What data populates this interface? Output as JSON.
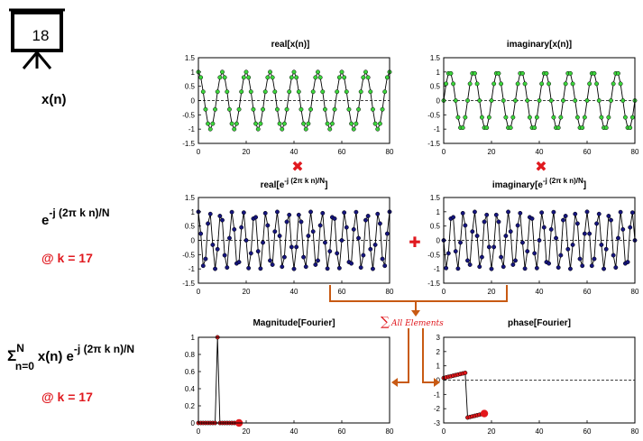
{
  "slide_number": "18",
  "rows": {
    "signal": {
      "label": "x(n)"
    },
    "kernel": {
      "label_base": "e",
      "label_exp": "-j (2π k n)/N",
      "k_note": "@ k = 17"
    },
    "sum": {
      "label_sigma": "Σ",
      "label_upper": "N",
      "label_lower": "n=0",
      "label_term": "x(n) e",
      "label_exp": "-j (2π k n)/N",
      "k_note": "@ k = 17"
    }
  },
  "operators": {
    "multiply": "✖",
    "add": "✚",
    "sum_text": "All Elements",
    "sum_symbol": "∑"
  },
  "colors": {
    "signal_marker": "#3cd63c",
    "kernel_marker": "#15157d",
    "fourier_marker": "#e3171b",
    "operator": "#e0191f",
    "arrow": "#c85a13"
  },
  "charts": [
    {
      "id": "real-x",
      "title": "real[x(n)]"
    },
    {
      "id": "imag-x",
      "title": "imaginary[x(n)]"
    },
    {
      "id": "real-e",
      "title_main": "real[e",
      "title_sup": "-j (2π k n)/N",
      "title_end": "]"
    },
    {
      "id": "imag-e",
      "title_main": "imaginary[e",
      "title_sup": "-j (2π k n)/N",
      "title_end": "]"
    },
    {
      "id": "mag",
      "title": "Magnitude[Fourier]"
    },
    {
      "id": "phase",
      "title": "phase[Fourier]"
    }
  ],
  "chart_data": [
    {
      "type": "line",
      "name": "real-x",
      "xlim": [
        0,
        80
      ],
      "ylim": [
        -1.5,
        1.5
      ],
      "xticks": [
        0,
        20,
        40,
        60,
        80
      ],
      "yticks": [
        "1.5",
        "1",
        "0.5",
        "0",
        "-0.5",
        "-1",
        "-1.5"
      ],
      "function": "cos(2π·8n/80)",
      "n_range": [
        0,
        80
      ]
    },
    {
      "type": "line",
      "name": "imag-x",
      "xlim": [
        0,
        80
      ],
      "ylim": [
        -1.5,
        1.5
      ],
      "xticks": [
        0,
        20,
        40,
        60,
        80
      ],
      "yticks": [
        "1.5",
        "1",
        "0.5",
        "0",
        "-0.5",
        "-1",
        "-1.5"
      ],
      "function": "sin(2π·8n/80)",
      "n_range": [
        0,
        80
      ]
    },
    {
      "type": "line",
      "name": "real-e",
      "xlim": [
        0,
        80
      ],
      "ylim": [
        -1.5,
        1.5
      ],
      "xticks": [
        0,
        20,
        40,
        60,
        80
      ],
      "yticks": [
        "1.5",
        "1",
        "0.5",
        "0",
        "-0.5",
        "-1",
        "-1.5"
      ],
      "function": "cos(2π·17n/80)",
      "n_range": [
        0,
        80
      ]
    },
    {
      "type": "line",
      "name": "imag-e",
      "xlim": [
        0,
        80
      ],
      "ylim": [
        -1.5,
        1.5
      ],
      "xticks": [
        0,
        20,
        40,
        60,
        80
      ],
      "yticks": [
        "1.5",
        "1",
        "0.5",
        "0",
        "-0.5",
        "-1",
        "-1.5"
      ],
      "function": "-sin(2π·17n/80)",
      "n_range": [
        0,
        80
      ]
    },
    {
      "type": "line",
      "name": "mag",
      "xlim": [
        0,
        80
      ],
      "ylim": [
        0,
        1
      ],
      "xticks": [
        0,
        20,
        40,
        60,
        80
      ],
      "yticks": [
        "1",
        "0.8",
        "0.6",
        "0.4",
        "0.2",
        "0"
      ],
      "x": [
        0,
        1,
        2,
        3,
        4,
        5,
        6,
        7,
        8,
        9,
        10,
        11,
        12,
        13,
        14,
        15,
        16,
        17
      ],
      "y": [
        0,
        0,
        0,
        0,
        0,
        0,
        0,
        0,
        1,
        0,
        0,
        0,
        0,
        0,
        0,
        0,
        0,
        0
      ],
      "highlight": {
        "x": 17,
        "y": 0
      },
      "dashed_baseline": [
        17,
        80
      ]
    },
    {
      "type": "line",
      "name": "phase",
      "xlim": [
        0,
        80
      ],
      "ylim": [
        -3,
        3
      ],
      "xticks": [
        0,
        20,
        40,
        60,
        80
      ],
      "yticks": [
        "3",
        "2",
        "1",
        "0",
        "-1",
        "-2",
        "-3"
      ],
      "x": [
        0,
        1,
        2,
        3,
        4,
        5,
        6,
        7,
        8,
        9,
        10,
        11,
        12,
        13,
        14,
        15,
        16,
        17
      ],
      "y": [
        0.15,
        0.19,
        0.23,
        0.27,
        0.31,
        0.35,
        0.39,
        0.43,
        0.47,
        0.51,
        -2.62,
        -2.58,
        -2.54,
        -2.5,
        -2.46,
        -2.42,
        -2.38,
        -2.34
      ],
      "highlight": {
        "x": 17,
        "y": -2.34
      }
    }
  ]
}
